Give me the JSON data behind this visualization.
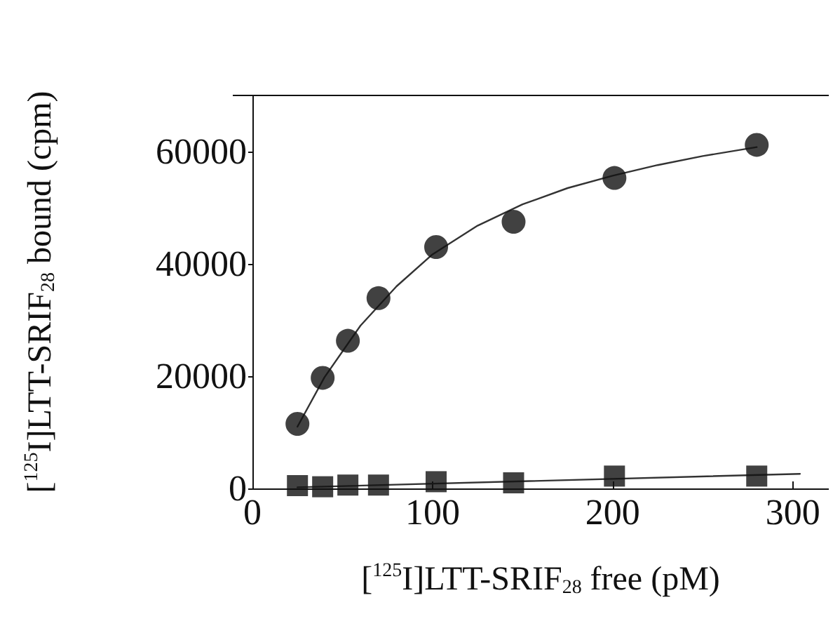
{
  "chart_data": {
    "type": "scatter",
    "xlabel": "[$^{125}$I]LTT-SRIF$_{28}$ free (pM)",
    "ylabel": "[$^{125}$I]LTT-SRIF$_{28}$ bound (cpm)",
    "xlim": [
      0,
      320
    ],
    "xticks": [
      0,
      100,
      200,
      300
    ],
    "ylim": [
      0,
      70000
    ],
    "yticks": [
      0,
      20000,
      40000,
      60000
    ],
    "grid": false,
    "series": [
      {
        "marker": "circle",
        "color": "#111111",
        "x": [
          25,
          39,
          53,
          70,
          102,
          145,
          201,
          280
        ],
        "values": [
          11500,
          19700,
          26300,
          33900,
          43000,
          47500,
          55300,
          61200
        ]
      },
      {
        "marker": "square",
        "color": "#111111",
        "x": [
          25,
          39,
          53,
          70,
          102,
          145,
          201,
          280
        ],
        "values": [
          500,
          300,
          600,
          600,
          1200,
          1000,
          2200,
          2200
        ]
      },
      {
        "type": "line",
        "marker": "none",
        "line_style": "solid",
        "color": "#333333",
        "x": [
          25,
          40,
          60,
          80,
          100,
          125,
          150,
          175,
          200,
          225,
          250,
          280
        ],
        "values": [
          11000,
          19800,
          29000,
          36000,
          41700,
          46800,
          50600,
          53500,
          55700,
          57600,
          59200,
          60800
        ]
      },
      {
        "type": "line",
        "marker": "none",
        "line_style": "solid",
        "color": "#333333",
        "x": [
          25,
          304
        ],
        "values": [
          200,
          2600
        ]
      }
    ]
  }
}
